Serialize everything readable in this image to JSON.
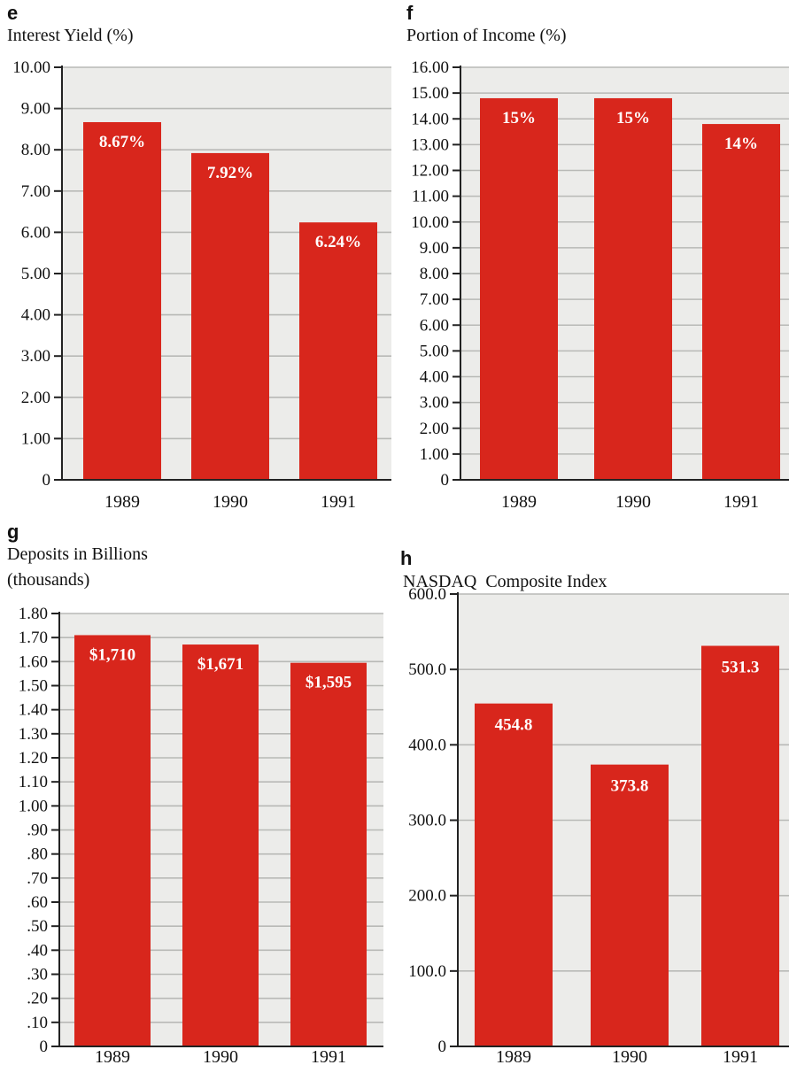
{
  "colors": {
    "bar": "#d8261c",
    "plot_background": "#ececea",
    "grid": "#b8b9b6",
    "data_label": "#ffffff"
  },
  "chart_data": [
    {
      "panel": "e",
      "type": "bar",
      "title": "Interest Yield (%)",
      "categories": [
        "1989",
        "1990",
        "1991"
      ],
      "values": [
        8.67,
        7.92,
        6.24
      ],
      "data_labels": [
        "8.67%",
        "7.92%",
        "6.24%"
      ],
      "yticks": [
        "0",
        "1.00",
        "2.00",
        "3.00",
        "4.00",
        "5.00",
        "6.00",
        "7.00",
        "8.00",
        "9.00",
        "10.00"
      ],
      "ytick_values": [
        0,
        1,
        2,
        3,
        4,
        5,
        6,
        7,
        8,
        9,
        10
      ],
      "ylim": [
        0,
        10
      ],
      "grid": true
    },
    {
      "panel": "f",
      "type": "bar",
      "title": "Portion of Income (%)",
      "categories": [
        "1989",
        "1990",
        "1991"
      ],
      "values": [
        14.8,
        14.8,
        13.8
      ],
      "data_labels": [
        "15%",
        "15%",
        "14%"
      ],
      "yticks": [
        "0",
        "1.00",
        "2.00",
        "3.00",
        "4.00",
        "5.00",
        "6.00",
        "7.00",
        "8.00",
        "9.00",
        "10.00",
        "11.00",
        "12.00",
        "13.00",
        "14.00",
        "15.00",
        "16.00"
      ],
      "ytick_values": [
        0,
        1,
        2,
        3,
        4,
        5,
        6,
        7,
        8,
        9,
        10,
        11,
        12,
        13,
        14,
        15,
        16
      ],
      "ylim": [
        0,
        16
      ],
      "grid": true
    },
    {
      "panel": "g",
      "type": "bar",
      "title": "Deposits in Billions",
      "title_line2": "(thousands)",
      "categories": [
        "1989",
        "1990",
        "1991"
      ],
      "values": [
        1.71,
        1.671,
        1.595
      ],
      "data_labels": [
        "$1,710",
        "$1,671",
        "$1,595"
      ],
      "yticks": [
        "0",
        ".10",
        ".20",
        ".30",
        ".40",
        ".50",
        ".60",
        ".70",
        ".80",
        ".90",
        "1.00",
        "1.10",
        "1.20",
        "1.30",
        "1.40",
        "1.50",
        "1.60",
        "1.70",
        "1.80"
      ],
      "ytick_values": [
        0,
        0.1,
        0.2,
        0.3,
        0.4,
        0.5,
        0.6,
        0.7,
        0.8,
        0.9,
        1.0,
        1.1,
        1.2,
        1.3,
        1.4,
        1.5,
        1.6,
        1.7,
        1.8
      ],
      "ylim": [
        0,
        1.8
      ],
      "grid": true
    },
    {
      "panel": "h",
      "type": "bar",
      "title": "NASDAQ  Composite Index",
      "categories": [
        "1989",
        "1990",
        "1991"
      ],
      "values": [
        454.8,
        373.8,
        531.3
      ],
      "data_labels": [
        "454.8",
        "373.8",
        "531.3"
      ],
      "yticks": [
        "0",
        "100.0",
        "200.0",
        "300.0",
        "400.0",
        "500.0",
        "600.0"
      ],
      "ytick_values": [
        0,
        100,
        200,
        300,
        400,
        500,
        600
      ],
      "ylim": [
        0,
        600
      ],
      "grid": true
    }
  ]
}
